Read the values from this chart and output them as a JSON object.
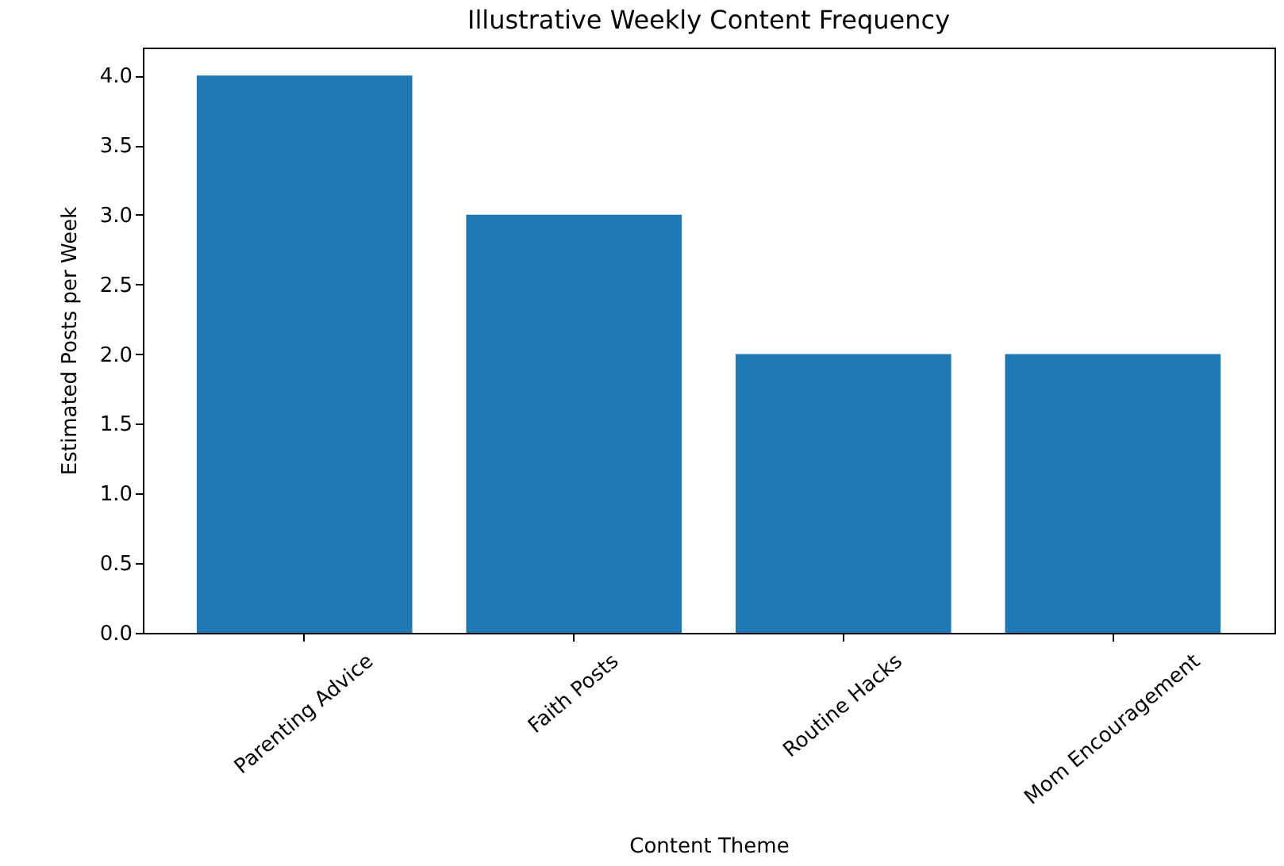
{
  "chart_data": {
    "type": "bar",
    "title": "Illustrative Weekly Content Frequency",
    "xlabel": "Content Theme",
    "ylabel": "Estimated Posts per Week",
    "categories": [
      "Parenting Advice",
      "Faith Posts",
      "Routine Hacks",
      "Mom Encouragement"
    ],
    "values": [
      4,
      3,
      2,
      2
    ],
    "color": "#1f77b4",
    "ylim": [
      0,
      4.2
    ],
    "yticks": [
      {
        "value": 0,
        "label": "0.0"
      },
      {
        "value": 0.5,
        "label": "0.5"
      },
      {
        "value": 1,
        "label": "1.0"
      },
      {
        "value": 1.5,
        "label": "1.5"
      },
      {
        "value": 2,
        "label": "2.0"
      },
      {
        "value": 2.5,
        "label": "2.5"
      },
      {
        "value": 3,
        "label": "3.0"
      },
      {
        "value": 3.5,
        "label": "3.5"
      },
      {
        "value": 4,
        "label": "4.0"
      }
    ]
  }
}
